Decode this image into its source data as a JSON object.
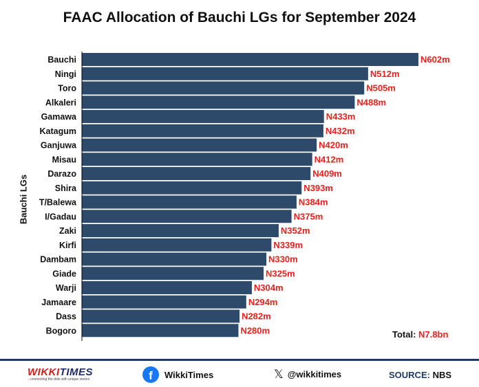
{
  "chart_data": {
    "type": "bar",
    "orientation": "horizontal",
    "title": "FAAC Allocation of Bauchi LGs for September 2024",
    "ylabel": "Bauchi LGs",
    "xlim": [
      0,
      602
    ],
    "categories": [
      "Bauchi",
      "Ningi",
      "Toro",
      "Alkaleri",
      "Gamawa",
      "Katagum",
      "Ganjuwa",
      "Misau",
      "Darazo",
      "Shira",
      "T/Balewa",
      "I/Gadau",
      "Zaki",
      "Kirfi",
      "Dambam",
      "Giade",
      "Warji",
      "Jamaare",
      "Dass",
      "Bogoro"
    ],
    "values": [
      602,
      512,
      505,
      488,
      433,
      432,
      420,
      412,
      409,
      393,
      384,
      375,
      352,
      339,
      330,
      325,
      304,
      294,
      282,
      280
    ],
    "data_labels": [
      "N602m",
      "N512m",
      "N505m",
      "N488m",
      "N433m",
      "N432m",
      "N420m",
      "N412m",
      "N409m",
      "N393m",
      "N384m",
      "N375m",
      "N352m",
      "N339m",
      "N330m",
      "N325m",
      "N304m",
      "N294m",
      "N282m",
      "N280m"
    ],
    "bar_color": "#2e4a6b",
    "label_color": "#e8211d",
    "grid": false,
    "legend": "none"
  },
  "total": {
    "label": "Total:",
    "value": "N7.8bn"
  },
  "footer": {
    "logo_text_a": "WIKKI",
    "logo_text_b": "TIMES",
    "logo_tagline": "...connecting the dots with unique stories",
    "facebook_icon": "facebook-icon",
    "facebook_label": "WikkiTimes",
    "x_icon": "x-icon",
    "x_label": "@wikkitimes",
    "source_label": "SOURCE:",
    "source_value": "NBS"
  }
}
